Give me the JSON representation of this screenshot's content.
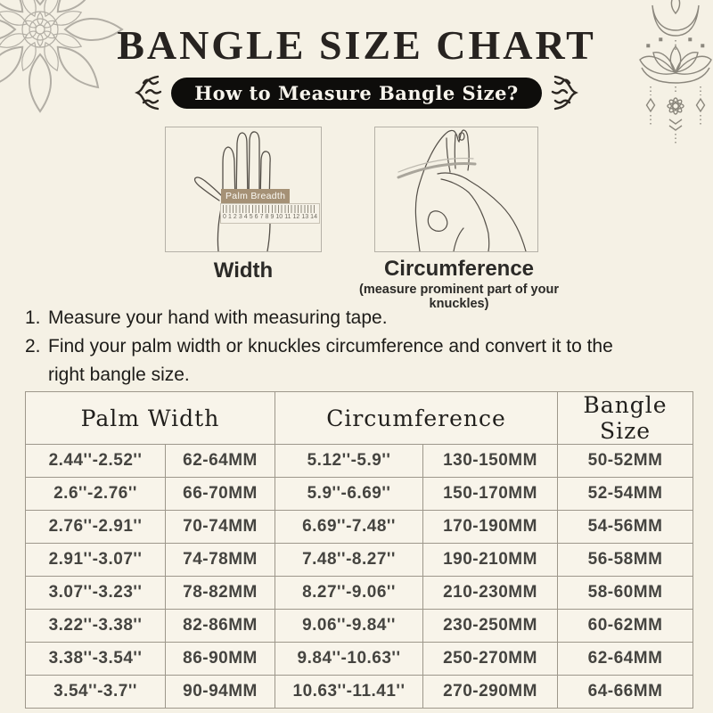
{
  "title": "BANGLE SIZE CHART",
  "banner": {
    "label": "How to Measure Bangle Size?"
  },
  "figures": {
    "width": {
      "label": "Width",
      "ruler_label": "Palm Breadth",
      "ruler_numbers": [
        "0",
        "1",
        "2",
        "3",
        "4",
        "5",
        "6",
        "7",
        "8",
        "9",
        "10",
        "11",
        "12",
        "13",
        "14"
      ]
    },
    "circumference": {
      "label": "Circumference",
      "note": "(measure prominent part of your knuckles)"
    }
  },
  "instructions": [
    {
      "num": "1.",
      "text": "Measure your hand with measuring tape."
    },
    {
      "num": "2.",
      "text": "Find your palm width or knuckles circumference and convert it to the\nright bangle size."
    }
  ],
  "table": {
    "headers": [
      {
        "label": "Palm Width"
      },
      {
        "label": "Circumference"
      },
      {
        "label": "Bangle Size"
      }
    ],
    "rows": [
      [
        "2.44''-2.52''",
        "62-64MM",
        "5.12''-5.9''",
        "130-150MM",
        "50-52MM"
      ],
      [
        "2.6''-2.76''",
        "66-70MM",
        "5.9''-6.69''",
        "150-170MM",
        "52-54MM"
      ],
      [
        "2.76''-2.91''",
        "70-74MM",
        "6.69''-7.48''",
        "170-190MM",
        "54-56MM"
      ],
      [
        "2.91''-3.07''",
        "74-78MM",
        "7.48''-8.27''",
        "190-210MM",
        "56-58MM"
      ],
      [
        "3.07''-3.23''",
        "78-82MM",
        "8.27''-9.06''",
        "210-230MM",
        "58-60MM"
      ],
      [
        "3.22''-3.38''",
        "82-86MM",
        "9.06''-9.84''",
        "230-250MM",
        "60-62MM"
      ],
      [
        "3.38''-3.54''",
        "86-90MM",
        "9.84''-10.63''",
        "250-270MM",
        "62-64MM"
      ],
      [
        "3.54''-3.7''",
        "90-94MM",
        "10.63''-11.41''",
        "270-290MM",
        "64-66MM"
      ]
    ]
  },
  "colors": {
    "background": "#f5f1e5",
    "banner_bg": "#0e0d0b",
    "banner_text": "#f7f4ec",
    "table_border": "#9d978b",
    "ruler_label_bg": "#a59176",
    "ornament_gray": "#8b877d"
  }
}
